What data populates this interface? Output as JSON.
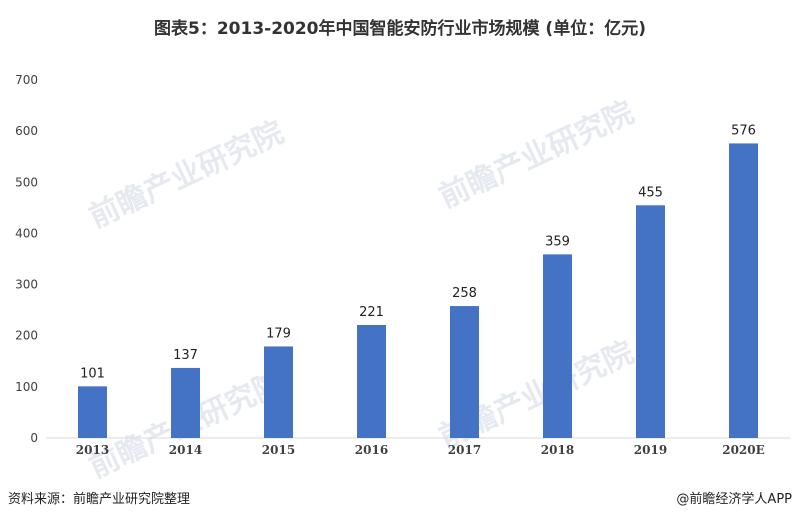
{
  "title": "图表5：2013-2020年中国智能安防行业市场规模 (单位：亿元)",
  "source": "资料来源：前瞻产业研究院整理",
  "brand": "@前瞻经济学人APP",
  "watermark": "前瞻产业研究院",
  "colors": {
    "bar": "#4472C4",
    "axis": "#D9D9D9",
    "text": "#404040"
  },
  "chart_data": {
    "type": "bar",
    "categories": [
      "2013",
      "2014",
      "2015",
      "2016",
      "2017",
      "2018",
      "2019",
      "2020E"
    ],
    "values": [
      101,
      137,
      179,
      221,
      258,
      359,
      455,
      576
    ],
    "ylim": [
      0,
      700
    ],
    "yticks": [
      0,
      100,
      200,
      300,
      400,
      500,
      600,
      700
    ],
    "grid": false,
    "data_labels": true
  }
}
